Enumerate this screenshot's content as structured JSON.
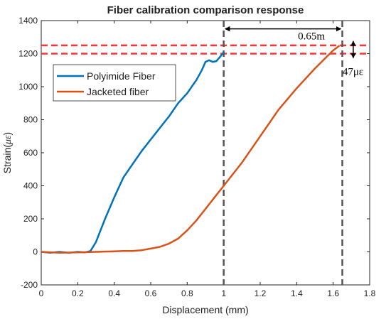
{
  "chart_data": {
    "type": "line",
    "title": "Fiber calibration comparison response",
    "xlabel": "Displacement (mm)",
    "ylabel_prefix": "Strain(",
    "ylabel_unit": "με",
    "ylabel_suffix": ")",
    "xlim": [
      0,
      1.8
    ],
    "ylim": [
      -200,
      1400
    ],
    "xticks": [
      0,
      0.2,
      0.4,
      0.6,
      0.8,
      1,
      1.2,
      1.4,
      1.6,
      1.8
    ],
    "xtick_labels": [
      "0",
      "0.2",
      "0.4",
      "0.6",
      "0.8",
      "1",
      "1.2",
      "1.4",
      "1.6",
      "1.8"
    ],
    "yticks": [
      -200,
      0,
      200,
      400,
      600,
      800,
      1000,
      1200,
      1400
    ],
    "ytick_labels": [
      "-200",
      "0",
      "200",
      "400",
      "600",
      "800",
      "1000",
      "1200",
      "1400"
    ],
    "grid": false,
    "legend_position": "upper-left",
    "series": [
      {
        "name": "Polyimide Fiber",
        "color": "#0072BD",
        "points": [
          [
            0,
            0
          ],
          [
            0.05,
            -5
          ],
          [
            0.1,
            0
          ],
          [
            0.15,
            -5
          ],
          [
            0.2,
            0
          ],
          [
            0.24,
            -3
          ],
          [
            0.27,
            5
          ],
          [
            0.3,
            60
          ],
          [
            0.35,
            200
          ],
          [
            0.4,
            330
          ],
          [
            0.45,
            450
          ],
          [
            0.5,
            530
          ],
          [
            0.55,
            610
          ],
          [
            0.6,
            680
          ],
          [
            0.65,
            750
          ],
          [
            0.7,
            820
          ],
          [
            0.75,
            900
          ],
          [
            0.8,
            960
          ],
          [
            0.85,
            1040
          ],
          [
            0.88,
            1100
          ],
          [
            0.9,
            1150
          ],
          [
            0.92,
            1160
          ],
          [
            0.94,
            1150
          ],
          [
            0.96,
            1155
          ],
          [
            0.98,
            1180
          ],
          [
            1.0,
            1210
          ]
        ]
      },
      {
        "name": "Jacketed fiber",
        "color": "#D95319",
        "points": [
          [
            0,
            0
          ],
          [
            0.1,
            -5
          ],
          [
            0.2,
            -3
          ],
          [
            0.3,
            0
          ],
          [
            0.4,
            3
          ],
          [
            0.45,
            5
          ],
          [
            0.5,
            5
          ],
          [
            0.55,
            10
          ],
          [
            0.6,
            20
          ],
          [
            0.65,
            30
          ],
          [
            0.7,
            50
          ],
          [
            0.75,
            80
          ],
          [
            0.8,
            130
          ],
          [
            0.85,
            190
          ],
          [
            0.9,
            260
          ],
          [
            0.95,
            330
          ],
          [
            1.0,
            400
          ],
          [
            1.1,
            540
          ],
          [
            1.2,
            700
          ],
          [
            1.3,
            860
          ],
          [
            1.4,
            990
          ],
          [
            1.5,
            1110
          ],
          [
            1.55,
            1165
          ],
          [
            1.6,
            1220
          ],
          [
            1.635,
            1248
          ]
        ]
      }
    ],
    "reference_lines": {
      "horizontal_red_dashed": [
        1200,
        1250
      ],
      "vertical_gray_dashed": [
        1.0,
        1.65
      ],
      "red_color": "#FF3333",
      "gray_color": "#555555"
    },
    "annotations": [
      {
        "text": "0.65m",
        "type": "horizontal-span",
        "x1": 1.0,
        "x2": 1.65,
        "y": 1350
      },
      {
        "text": "47με",
        "type": "vertical-span",
        "x": 1.71,
        "y1": 1200,
        "y2": 1250
      }
    ]
  }
}
